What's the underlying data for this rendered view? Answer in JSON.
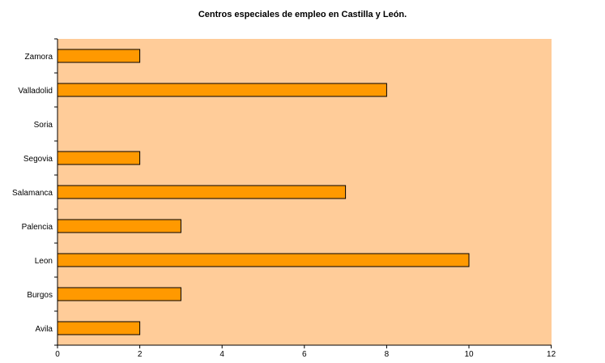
{
  "chart_data": {
    "type": "bar",
    "orientation": "horizontal",
    "title": "Centros especiales de empleo en Castilla y León.",
    "categories": [
      "Avila",
      "Burgos",
      "Leon",
      "Palencia",
      "Salamanca",
      "Segovia",
      "Soria",
      "Valladolid",
      "Zamora"
    ],
    "values": [
      2,
      3,
      10,
      3,
      7,
      2,
      0,
      8,
      2
    ],
    "xlim": [
      0,
      12
    ],
    "x_ticks": [
      "0",
      "2",
      "4",
      "6",
      "8",
      "10",
      "12"
    ],
    "xlabel": "",
    "ylabel": "",
    "grid": false,
    "legend": "none",
    "colors": {
      "plot_background": "#FFCC99",
      "bar_fill": "#FF9900",
      "bar_stroke": "#000000"
    }
  }
}
